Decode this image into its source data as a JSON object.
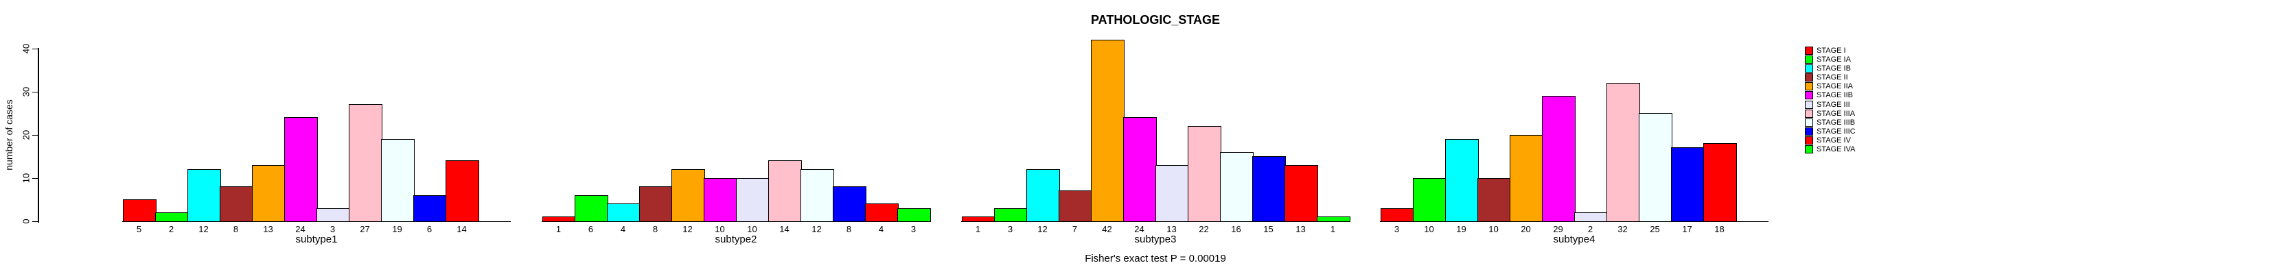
{
  "title": "PATHOLOGIC_STAGE",
  "annotation": "Fisher's exact test P = 0.00019",
  "y_axis": {
    "label": "number of cases"
  },
  "legend": {
    "items": [
      {
        "label": "STAGE I",
        "color": "#FF0000"
      },
      {
        "label": "STAGE IA",
        "color": "#00FF00"
      },
      {
        "label": "STAGE IB",
        "color": "#00FFFF"
      },
      {
        "label": "STAGE II",
        "color": "#A52A2A"
      },
      {
        "label": "STAGE IIA",
        "color": "#FFA500"
      },
      {
        "label": "STAGE IIB",
        "color": "#FF00FF"
      },
      {
        "label": "STAGE III",
        "color": "#E6E6FA"
      },
      {
        "label": "STAGE IIIA",
        "color": "#FFC0CB"
      },
      {
        "label": "STAGE IIIB",
        "color": "#F0FFFF"
      },
      {
        "label": "STAGE IIIC",
        "color": "#0000FF"
      },
      {
        "label": "STAGE IV",
        "color": "#FF0000"
      },
      {
        "label": "STAGE IVA",
        "color": "#00FF00"
      }
    ]
  },
  "chart_data": {
    "type": "bar",
    "title": "PATHOLOGIC_STAGE",
    "xlabel": "",
    "ylabel": "number of cases",
    "ylim": [
      0,
      40
    ],
    "y_ticks": [
      0,
      10,
      20,
      30,
      40
    ],
    "grid": false,
    "legend_position": "right",
    "categories": [
      "STAGE I",
      "STAGE IA",
      "STAGE IB",
      "STAGE II",
      "STAGE IIA",
      "STAGE IIB",
      "STAGE III",
      "STAGE IIIA",
      "STAGE IIIB",
      "STAGE IIIC",
      "STAGE IV",
      "STAGE IVA"
    ],
    "colors": [
      "#FF0000",
      "#00FF00",
      "#00FFFF",
      "#A52A2A",
      "#FFA500",
      "#FF00FF",
      "#E6E6FA",
      "#FFC0CB",
      "#F0FFFF",
      "#0000FF",
      "#FF0000",
      "#00FF00"
    ],
    "groups": [
      {
        "name": "subtype1",
        "values": [
          5,
          2,
          12,
          8,
          13,
          24,
          3,
          27,
          19,
          6,
          14,
          0
        ]
      },
      {
        "name": "subtype2",
        "values": [
          1,
          6,
          4,
          8,
          12,
          10,
          10,
          14,
          12,
          8,
          4,
          3
        ]
      },
      {
        "name": "subtype3",
        "values": [
          1,
          3,
          12,
          7,
          42,
          24,
          13,
          22,
          16,
          15,
          13,
          1
        ]
      },
      {
        "name": "subtype4",
        "values": [
          3,
          10,
          19,
          10,
          20,
          29,
          2,
          32,
          25,
          17,
          18,
          0
        ]
      }
    ],
    "bar_value_labels_shown": true,
    "zero_value_bars_hidden": true,
    "annotation": "Fisher's exact test P = 0.00019"
  }
}
